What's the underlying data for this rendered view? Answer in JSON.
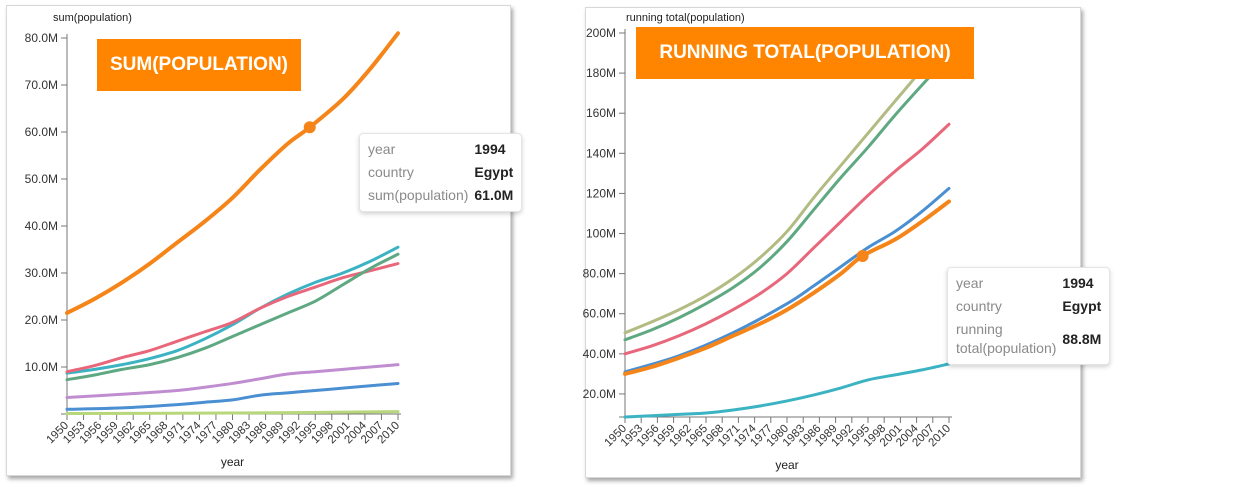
{
  "colors": {
    "orange": "#f58518",
    "teal": "#3bb3c3",
    "red": "#e8677a",
    "green": "#5ea882",
    "purple": "#c08dd0",
    "blue": "#4a8fd1",
    "lightgreen": "#b8d67a",
    "olive": "#b2bb82",
    "banner": "#ff8500"
  },
  "chart_data": [
    {
      "type": "line",
      "banner": "SUM(POPULATION)",
      "ylabel": "sum(population)",
      "xlabel": "year",
      "ylim": [
        0,
        80
      ],
      "y_unit": "M",
      "yticks": [
        "10.0M",
        "20.0M",
        "30.0M",
        "40.0M",
        "50.0M",
        "60.0M",
        "70.0M",
        "80.0M"
      ],
      "ytick_values": [
        10,
        20,
        30,
        40,
        50,
        60,
        70,
        80
      ],
      "xlim": [
        1950,
        2010
      ],
      "xticks": [
        "1950",
        "1953",
        "1956",
        "1959",
        "1962",
        "1965",
        "1968",
        "1971",
        "1974",
        "1977",
        "1980",
        "1983",
        "1986",
        "1989",
        "1992",
        "1995",
        "1998",
        "2001",
        "2004",
        "2007",
        "2010"
      ],
      "grid": false,
      "series": [
        {
          "color": "orange",
          "highlight": true,
          "x": [
            1950,
            1955,
            1960,
            1965,
            1970,
            1975,
            1980,
            1985,
            1990,
            1994,
            2000,
            2005,
            2010
          ],
          "y": [
            21.5,
            24.5,
            28,
            32,
            36.5,
            41,
            46,
            52,
            57.5,
            61,
            67,
            73.5,
            81
          ]
        },
        {
          "color": "teal",
          "x": [
            1950,
            1955,
            1960,
            1965,
            1970,
            1975,
            1980,
            1985,
            1990,
            1995,
            2000,
            2005,
            2010
          ],
          "y": [
            8.7,
            9.5,
            10.5,
            11.8,
            13.5,
            16,
            19,
            22.5,
            25.5,
            28,
            30,
            32.5,
            35.5
          ]
        },
        {
          "color": "red",
          "x": [
            1950,
            1955,
            1960,
            1965,
            1970,
            1975,
            1980,
            1985,
            1990,
            1995,
            2000,
            2005,
            2010
          ],
          "y": [
            9,
            10.3,
            12,
            13.5,
            15.5,
            17.5,
            19.5,
            22.5,
            25,
            27,
            29,
            30.5,
            32
          ]
        },
        {
          "color": "green",
          "x": [
            1950,
            1955,
            1960,
            1965,
            1970,
            1975,
            1980,
            1985,
            1990,
            1995,
            2000,
            2005,
            2010
          ],
          "y": [
            7.3,
            8.3,
            9.5,
            10.5,
            12,
            14,
            16.5,
            19,
            21.5,
            24,
            27.5,
            31,
            34
          ]
        },
        {
          "color": "purple",
          "x": [
            1950,
            1960,
            1970,
            1975,
            1980,
            1985,
            1990,
            1995,
            2000,
            2005,
            2010
          ],
          "y": [
            3.5,
            4.2,
            5,
            5.7,
            6.5,
            7.5,
            8.5,
            9,
            9.5,
            10,
            10.5
          ]
        },
        {
          "color": "blue",
          "x": [
            1950,
            1960,
            1970,
            1975,
            1980,
            1985,
            1990,
            1995,
            2000,
            2005,
            2010
          ],
          "y": [
            1,
            1.3,
            2,
            2.5,
            3,
            4,
            4.5,
            5,
            5.5,
            6,
            6.5
          ]
        },
        {
          "color": "lightgreen",
          "x": [
            1950,
            1980,
            2010
          ],
          "y": [
            0.1,
            0.2,
            0.5
          ]
        }
      ],
      "tooltip": {
        "rows": [
          {
            "key": "year",
            "value": "1994"
          },
          {
            "key": "country",
            "value": "Egypt"
          },
          {
            "key": "sum(population)",
            "value": "61.0M"
          }
        ]
      },
      "highlight_point": {
        "x": 1994,
        "y": 61.0
      }
    },
    {
      "type": "line",
      "banner": "RUNNING TOTAL(POPULATION)",
      "ylabel": "running total(population)",
      "xlabel": "year",
      "ylim": [
        8.5,
        200
      ],
      "y_unit": "M",
      "yticks": [
        "20.0M",
        "40.0M",
        "60.0M",
        "80.0M",
        "100M",
        "120M",
        "140M",
        "160M",
        "180M",
        "200M"
      ],
      "ytick_values": [
        20,
        40,
        60,
        80,
        100,
        120,
        140,
        160,
        180,
        200
      ],
      "xlim": [
        1950,
        2010
      ],
      "xticks": [
        "1950",
        "1953",
        "1956",
        "1959",
        "1962",
        "1965",
        "1968",
        "1971",
        "1974",
        "1977",
        "1980",
        "1983",
        "1986",
        "1989",
        "1992",
        "1995",
        "1998",
        "2001",
        "2004",
        "2007",
        "2010"
      ],
      "grid": false,
      "series": [
        {
          "color": "teal",
          "x": [
            1950,
            1960,
            1965,
            1970,
            1975,
            1980,
            1985,
            1990,
            1995,
            2000,
            2005,
            2010
          ],
          "y": [
            8.5,
            9.8,
            10.5,
            12,
            14,
            16.5,
            19.5,
            23,
            27,
            29.5,
            32,
            35
          ]
        },
        {
          "color": "blue",
          "x": [
            1950,
            1960,
            1970,
            1980,
            1985,
            1990,
            1995,
            2000,
            2005,
            2010
          ],
          "y": [
            31,
            39,
            50.5,
            65,
            74,
            83.5,
            93,
            101,
            111,
            122.5
          ]
        },
        {
          "color": "orange",
          "highlight": true,
          "x": [
            1950,
            1955,
            1960,
            1965,
            1970,
            1975,
            1980,
            1985,
            1990,
            1994,
            2000,
            2005,
            2010
          ],
          "y": [
            30,
            33.5,
            38,
            43,
            49,
            55,
            62,
            70.5,
            80,
            88.8,
            97,
            106,
            116
          ]
        },
        {
          "color": "red",
          "x": [
            1950,
            1955,
            1960,
            1965,
            1970,
            1975,
            1980,
            1985,
            1990,
            1995,
            2000,
            2005,
            2010
          ],
          "y": [
            40,
            44,
            49,
            55,
            62,
            70,
            80,
            93,
            106,
            119,
            131,
            142,
            154.5
          ]
        },
        {
          "color": "green",
          "x": [
            1950,
            1955,
            1960,
            1965,
            1970,
            1975,
            1980,
            1985,
            1990,
            1995,
            2000,
            2005,
            2010
          ],
          "y": [
            47,
            52,
            58,
            65,
            73,
            83,
            96,
            112,
            128,
            143,
            159,
            174,
            188.5
          ]
        },
        {
          "color": "olive",
          "x": [
            1950,
            1955,
            1960,
            1965,
            1970,
            1975,
            1980,
            1985,
            1990,
            1995,
            2000,
            2005,
            2010
          ],
          "y": [
            50.5,
            56,
            62,
            69,
            77.5,
            88,
            101,
            118,
            134,
            150,
            166,
            182,
            199.5
          ]
        }
      ],
      "tooltip": {
        "rows": [
          {
            "key": "year",
            "value": "1994"
          },
          {
            "key": "country",
            "value": "Egypt"
          },
          {
            "key": "running total(population)",
            "value": "88.8M"
          }
        ]
      },
      "highlight_point": {
        "x": 1994,
        "y": 88.8
      }
    }
  ]
}
